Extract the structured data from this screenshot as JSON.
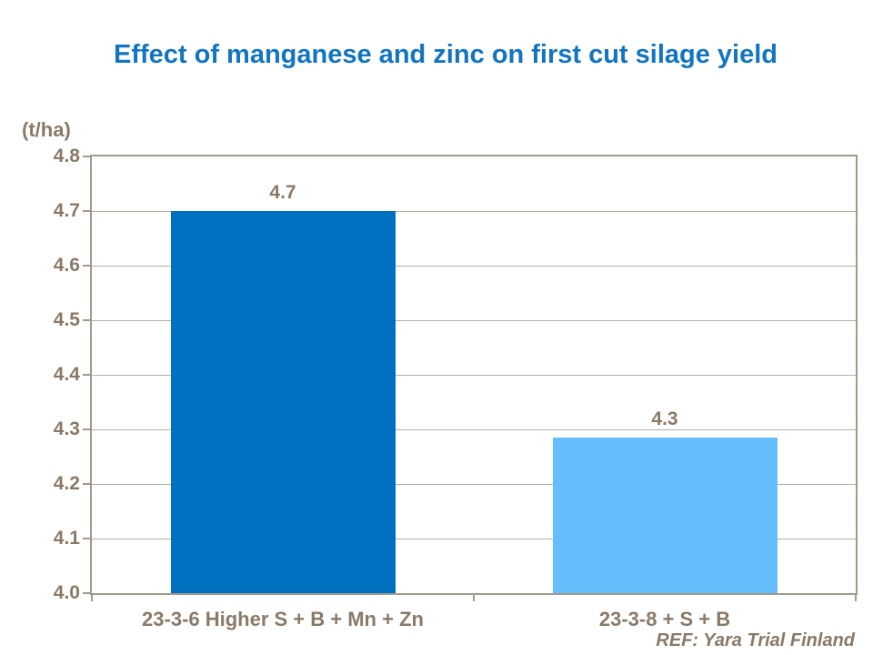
{
  "title": "Effect of manganese and zinc on first cut silage yield",
  "ref_note": "REF: Yara Trial Finland",
  "colors": {
    "title": "#1175C3",
    "axis_text": "#8A7967",
    "gridline": "#B6ADA1",
    "axis_line": "#A2988B",
    "background": "#FFFFFF"
  },
  "chart_data": {
    "type": "bar",
    "title": "Effect of manganese and zinc on first cut silage yield",
    "ylabel": "(t/ha)",
    "categories": [
      "23-3-6 Higher S + B + Mn + Zn",
      "23-3-8 + S + B"
    ],
    "values": [
      4.7,
      4.3
    ],
    "data_labels": [
      "4.7",
      "4.3"
    ],
    "plotted_values": [
      4.7,
      4.285
    ],
    "bar_colors": [
      "#0071C0",
      "#66BDFB"
    ],
    "ylim": [
      4.0,
      4.8
    ],
    "ytick_step": 0.1,
    "yticks": [
      "4.8",
      "4.7",
      "4.6",
      "4.5",
      "4.4",
      "4.3",
      "4.2",
      "4.1",
      "4.0"
    ],
    "grid": true,
    "legend": false,
    "annotation": "REF: Yara Trial Finland"
  }
}
